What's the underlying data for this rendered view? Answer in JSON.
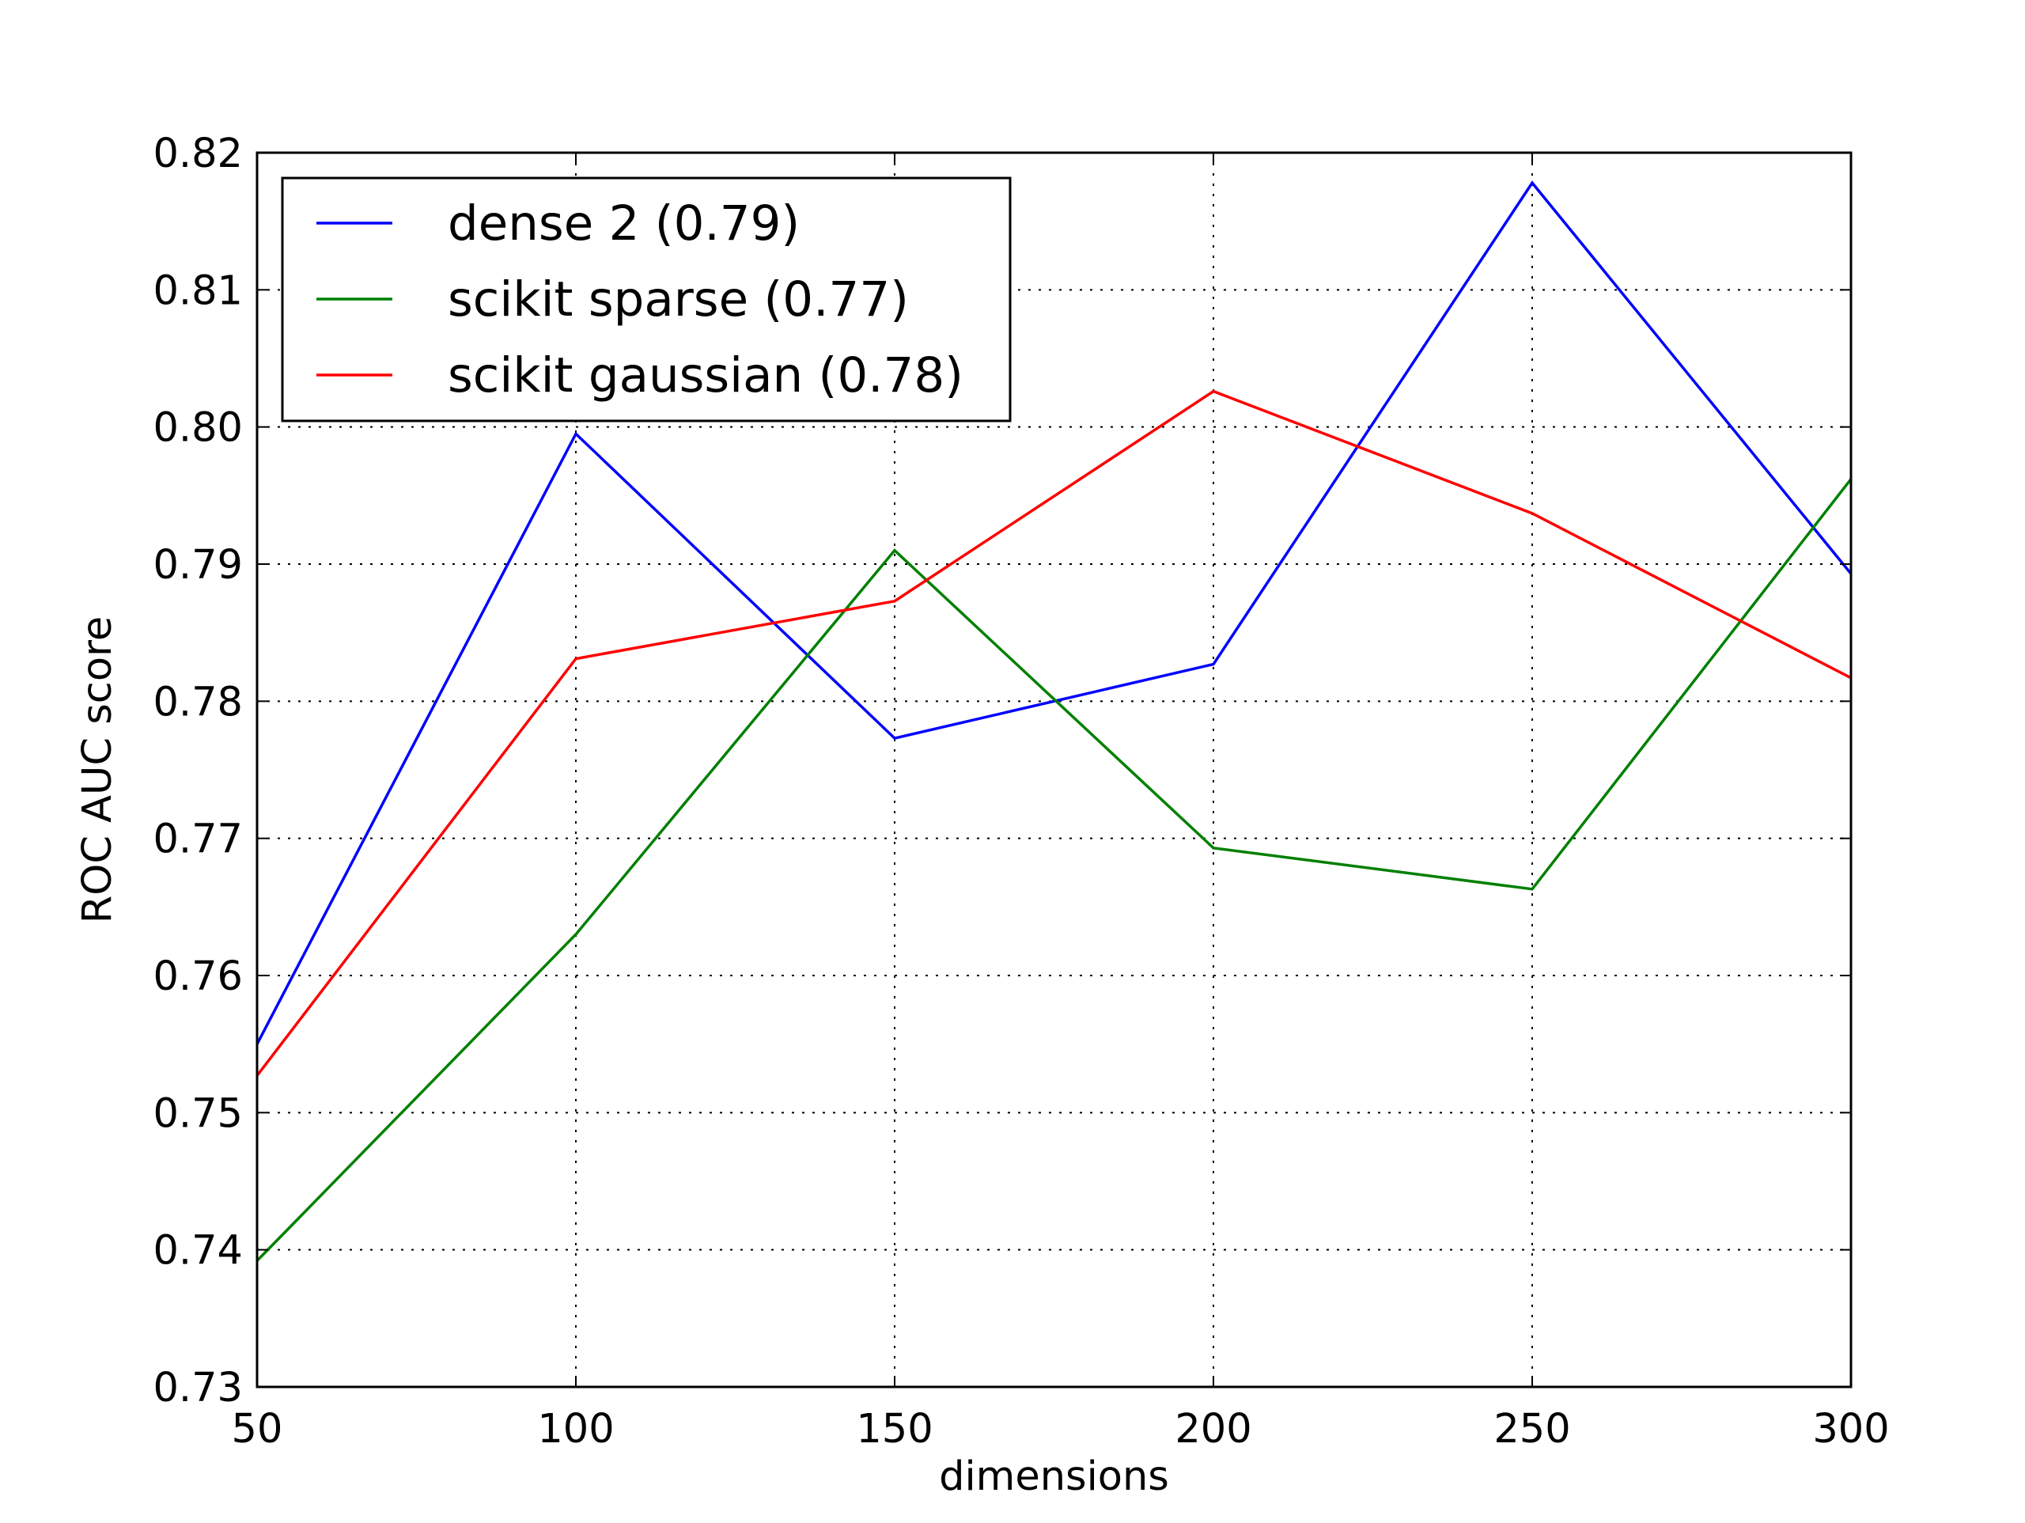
{
  "chart_data": {
    "type": "line",
    "title": "",
    "xlabel": "dimensions",
    "ylabel": "ROC AUC score",
    "xlim": [
      50,
      300
    ],
    "ylim": [
      0.73,
      0.82
    ],
    "xticks": [
      50,
      100,
      150,
      200,
      250,
      300
    ],
    "yticks": [
      0.73,
      0.74,
      0.75,
      0.76,
      0.77,
      0.78,
      0.79,
      0.8,
      0.81,
      0.82
    ],
    "xtick_labels": [
      "50",
      "100",
      "150",
      "200",
      "250",
      "300"
    ],
    "ytick_labels": [
      "0.73",
      "0.74",
      "0.75",
      "0.76",
      "0.77",
      "0.78",
      "0.79",
      "0.80",
      "0.81",
      "0.82"
    ],
    "grid": true,
    "grid_style": "dotted",
    "legend_position": "upper-left",
    "x": [
      50,
      100,
      150,
      200,
      250,
      300
    ],
    "series": [
      {
        "name": "dense 2 (0.79)",
        "color": "#0000ff",
        "values": [
          0.755,
          0.7995,
          0.7773,
          0.7827,
          0.8178,
          0.7893
        ]
      },
      {
        "name": "scikit sparse (0.77)",
        "color": "#008000",
        "values": [
          0.7392,
          0.763,
          0.791,
          0.7693,
          0.7663,
          0.7962
        ]
      },
      {
        "name": "scikit gaussian (0.78)",
        "color": "#ff0000",
        "values": [
          0.7527,
          0.7831,
          0.7873,
          0.8026,
          0.7937,
          0.7817
        ]
      }
    ]
  }
}
